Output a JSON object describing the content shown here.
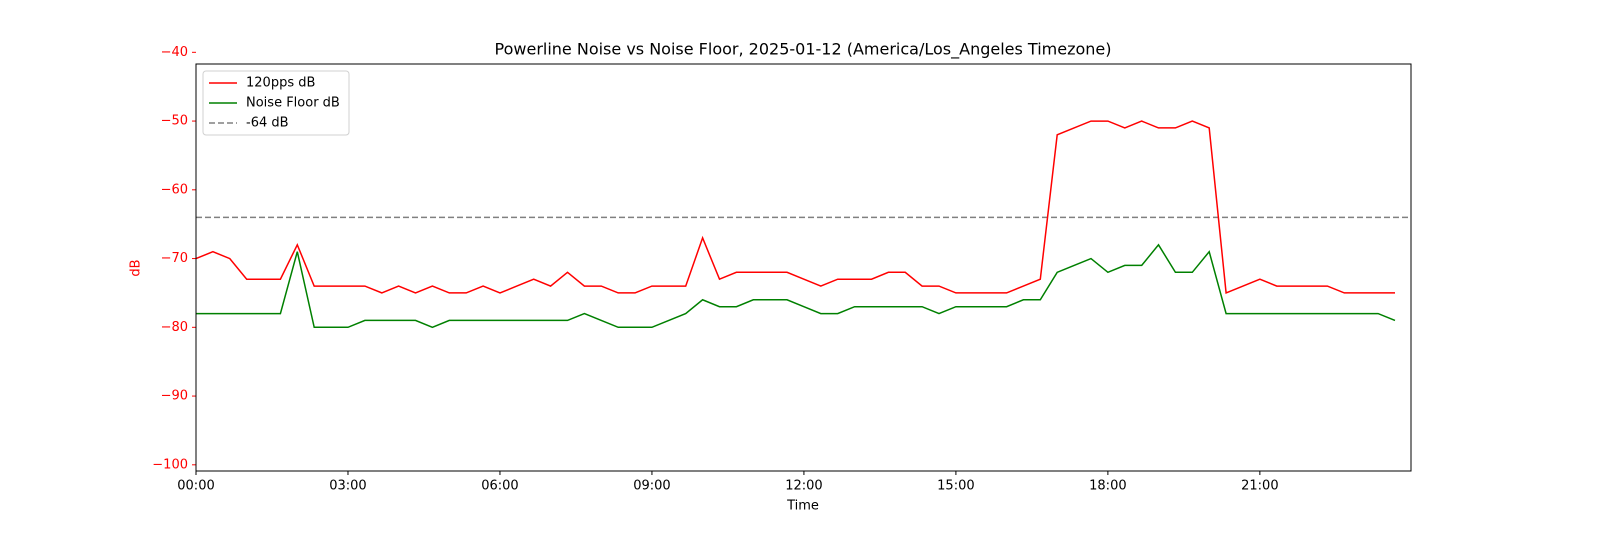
{
  "chart_data": {
    "type": "line",
    "title": "Powerline Noise vs Noise Floor, 2025-01-12 (America/Los_Angeles Timezone)",
    "xlabel": "Time",
    "ylabel": "dB",
    "ylabel_color": "red",
    "x": [
      "00:00",
      "00:20",
      "00:40",
      "01:00",
      "01:20",
      "01:40",
      "02:00",
      "02:20",
      "02:40",
      "03:00",
      "03:20",
      "03:40",
      "04:00",
      "04:20",
      "04:40",
      "05:00",
      "05:20",
      "05:40",
      "06:00",
      "06:20",
      "06:40",
      "07:00",
      "07:20",
      "07:40",
      "08:00",
      "08:20",
      "08:40",
      "09:00",
      "09:20",
      "09:40",
      "10:00",
      "10:20",
      "10:40",
      "11:00",
      "11:20",
      "11:40",
      "12:00",
      "12:20",
      "12:40",
      "13:00",
      "13:20",
      "13:40",
      "14:00",
      "14:20",
      "14:40",
      "15:00",
      "15:20",
      "15:40",
      "16:00",
      "16:20",
      "16:40",
      "17:00",
      "17:20",
      "17:40",
      "18:00",
      "18:20",
      "18:40",
      "19:00",
      "19:20",
      "19:40",
      "20:00",
      "20:20",
      "20:40",
      "21:00",
      "21:20",
      "21:40",
      "22:00",
      "22:20",
      "22:40",
      "23:00",
      "23:20",
      "23:40"
    ],
    "series": [
      {
        "name": "120pps dB",
        "color": "red",
        "values": [
          -70,
          -69,
          -70,
          -73,
          -73,
          -73,
          -68,
          -74,
          -74,
          -74,
          -74,
          -75,
          -74,
          -75,
          -74,
          -75,
          -75,
          -74,
          -75,
          -74,
          -73,
          -74,
          -72,
          -74,
          -74,
          -75,
          -75,
          -74,
          -74,
          -74,
          -67,
          -73,
          -72,
          -72,
          -72,
          -72,
          -73,
          -74,
          -73,
          -73,
          -73,
          -72,
          -72,
          -74,
          -74,
          -75,
          -75,
          -75,
          -75,
          -74,
          -73,
          -52,
          -51,
          -50,
          -50,
          -51,
          -50,
          -51,
          -51,
          -50,
          -51,
          -75,
          -74,
          -73,
          -74,
          -74,
          -74,
          -74,
          -75,
          -75,
          -75,
          -75
        ]
      },
      {
        "name": "Noise Floor dB",
        "color": "green",
        "values": [
          -78,
          -78,
          -78,
          -78,
          -78,
          -78,
          -69,
          -80,
          -80,
          -80,
          -79,
          -79,
          -79,
          -79,
          -80,
          -79,
          -79,
          -79,
          -79,
          -79,
          -79,
          -79,
          -79,
          -78,
          -79,
          -80,
          -80,
          -80,
          -79,
          -78,
          -76,
          -77,
          -77,
          -76,
          -76,
          -76,
          -77,
          -78,
          -78,
          -77,
          -77,
          -77,
          -77,
          -77,
          -78,
          -77,
          -77,
          -77,
          -77,
          -76,
          -76,
          -72,
          -71,
          -70,
          -72,
          -71,
          -71,
          -68,
          -72,
          -72,
          -69,
          -78,
          -78,
          -78,
          -78,
          -78,
          -78,
          -78,
          -78,
          -78,
          -78,
          -79
        ]
      }
    ],
    "hline": {
      "name": "-64 dB",
      "value": -64,
      "color": "gray"
    },
    "xlim": [
      "00:00",
      "23:59"
    ],
    "xticks": [
      "00:00",
      "03:00",
      "06:00",
      "09:00",
      "12:00",
      "15:00",
      "18:00",
      "21:00"
    ],
    "ylim": [
      -100.9,
      -41.7
    ],
    "yticks": [
      {
        "value": -100,
        "label": "−100"
      },
      {
        "value": -90,
        "label": "−90"
      },
      {
        "value": -80,
        "label": "−80"
      },
      {
        "value": -70,
        "label": "−70"
      },
      {
        "value": -60,
        "label": "−60"
      },
      {
        "value": -50,
        "label": "−50"
      },
      {
        "value": -40,
        "label": "−40"
      }
    ],
    "legend": "upper left"
  }
}
